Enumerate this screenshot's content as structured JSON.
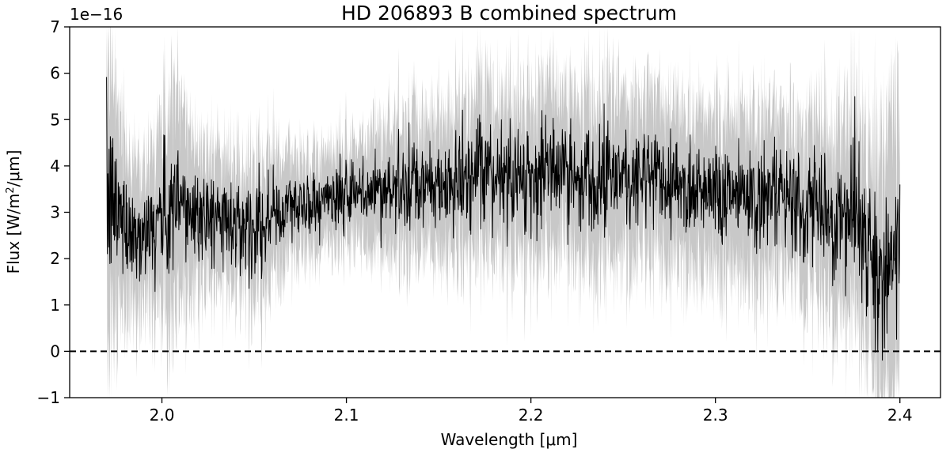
{
  "chart_data": {
    "type": "line",
    "title": "HD 206893 B combined spectrum",
    "xlabel": "Wavelength [μm]",
    "ylabel_parts": [
      "Flux [W/m",
      "2",
      "/μm]"
    ],
    "offset_label": "1e−16",
    "xlim": [
      1.95,
      2.422
    ],
    "ylim": [
      -1,
      7
    ],
    "xticks": [
      2.0,
      2.1,
      2.2,
      2.3,
      2.4
    ],
    "xtick_labels": [
      "2.0",
      "2.1",
      "2.2",
      "2.3",
      "2.4"
    ],
    "yticks": [
      -1,
      0,
      1,
      2,
      3,
      4,
      5,
      6,
      7
    ],
    "ytick_labels": [
      "−1",
      "0",
      "1",
      "2",
      "3",
      "4",
      "5",
      "6",
      "7"
    ],
    "x_range": [
      1.97,
      2.4
    ],
    "reference_line": {
      "y": 0,
      "style": "dashed",
      "color": "#000000"
    },
    "series": [
      {
        "role": "flux",
        "color": "#000000",
        "x": [
          1.97,
          1.975,
          1.98,
          1.985,
          1.99,
          1.995,
          2.0,
          2.005,
          2.01,
          2.02,
          2.03,
          2.04,
          2.05,
          2.06,
          2.07,
          2.08,
          2.09,
          2.1,
          2.11,
          2.12,
          2.13,
          2.14,
          2.15,
          2.16,
          2.17,
          2.18,
          2.19,
          2.2,
          2.21,
          2.22,
          2.23,
          2.24,
          2.25,
          2.26,
          2.27,
          2.28,
          2.29,
          2.3,
          2.31,
          2.32,
          2.33,
          2.34,
          2.35,
          2.36,
          2.37,
          2.38,
          2.385,
          2.39,
          2.395,
          2.4
        ],
        "y": [
          3.2,
          3.1,
          2.8,
          2.6,
          2.5,
          2.7,
          2.9,
          3.0,
          3.1,
          3.0,
          2.9,
          2.8,
          2.7,
          2.9,
          3.1,
          3.2,
          3.3,
          3.3,
          3.4,
          3.5,
          3.5,
          3.5,
          3.6,
          3.6,
          3.7,
          3.8,
          3.8,
          3.8,
          3.9,
          3.8,
          3.8,
          3.9,
          3.8,
          3.8,
          3.7,
          3.6,
          3.6,
          3.5,
          3.5,
          3.4,
          3.3,
          3.2,
          3.1,
          3.0,
          2.9,
          2.5,
          2.0,
          1.8,
          1.6,
          2.4
        ]
      },
      {
        "role": "uncertainty",
        "color": "#c8c8c8",
        "x": [
          1.97,
          1.975,
          1.98,
          1.985,
          1.99,
          1.995,
          2.0,
          2.005,
          2.01,
          2.02,
          2.03,
          2.04,
          2.05,
          2.06,
          2.07,
          2.08,
          2.09,
          2.1,
          2.11,
          2.12,
          2.13,
          2.14,
          2.15,
          2.16,
          2.17,
          2.18,
          2.19,
          2.2,
          2.21,
          2.22,
          2.23,
          2.24,
          2.25,
          2.26,
          2.27,
          2.28,
          2.29,
          2.3,
          2.31,
          2.32,
          2.33,
          2.34,
          2.35,
          2.36,
          2.37,
          2.38,
          2.385,
          2.39,
          2.395,
          2.4
        ],
        "sigma": [
          3.5,
          2.8,
          2.2,
          1.9,
          1.8,
          1.9,
          2.4,
          3.0,
          2.6,
          1.8,
          1.6,
          1.6,
          1.8,
          1.7,
          1.3,
          1.2,
          1.2,
          1.3,
          1.4,
          1.6,
          1.7,
          1.7,
          1.8,
          1.9,
          2.0,
          2.0,
          2.0,
          2.1,
          2.1,
          2.1,
          2.1,
          2.1,
          2.1,
          2.1,
          2.0,
          2.0,
          2.0,
          2.0,
          2.0,
          2.0,
          2.0,
          2.0,
          2.1,
          2.2,
          2.4,
          2.7,
          3.0,
          3.4,
          3.6,
          3.2
        ]
      }
    ],
    "grid": false,
    "legend": "none"
  }
}
